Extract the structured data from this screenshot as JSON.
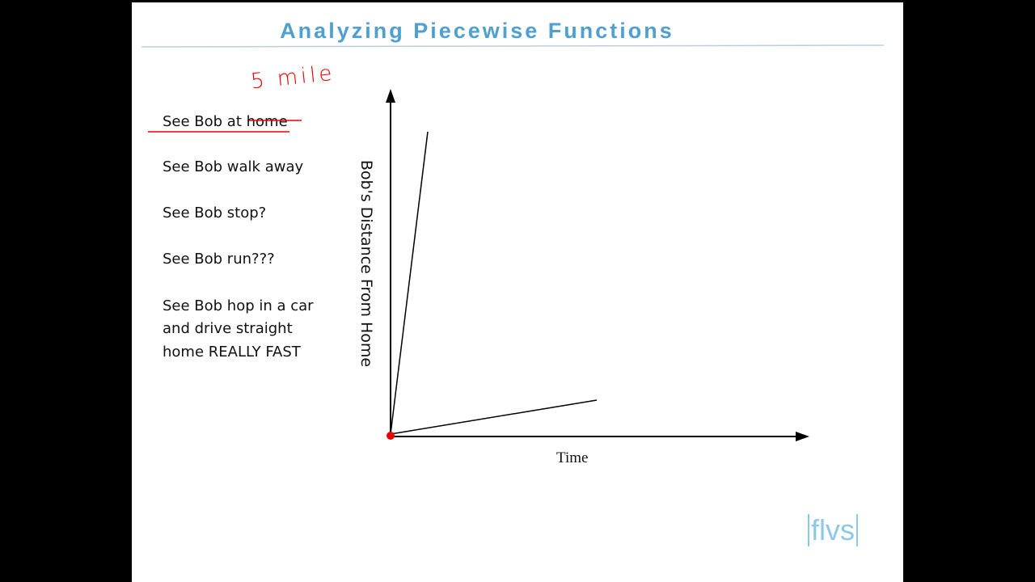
{
  "header": {
    "title": "Analyzing Piecewise Functions"
  },
  "items": [
    "See Bob at home",
    "See Bob walk away",
    "See Bob stop?",
    "See Bob run???",
    [
      "See Bob hop in a car",
      "and drive straight",
      "home REALLY FAST"
    ]
  ],
  "graph": {
    "y_label": "Bob's Distance From Home",
    "x_label": "Time"
  },
  "annotation": "5 mile",
  "logo": "flvs"
}
